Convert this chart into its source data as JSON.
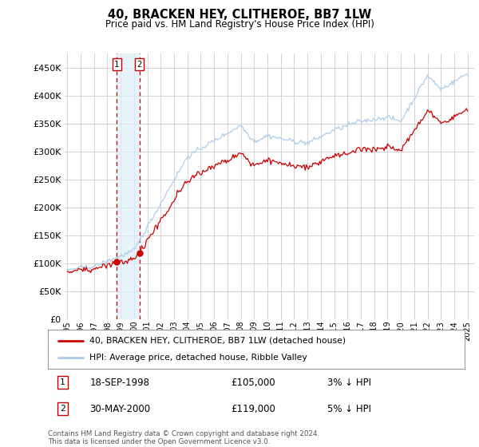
{
  "title": "40, BRACKEN HEY, CLITHEROE, BB7 1LW",
  "subtitle": "Price paid vs. HM Land Registry's House Price Index (HPI)",
  "legend_line1": "40, BRACKEN HEY, CLITHEROE, BB7 1LW (detached house)",
  "legend_line2": "HPI: Average price, detached house, Ribble Valley",
  "footnote": "Contains HM Land Registry data © Crown copyright and database right 2024.\nThis data is licensed under the Open Government Licence v3.0.",
  "transactions": [
    {
      "num": 1,
      "date": "18-SEP-1998",
      "price": 105000,
      "vs_hpi": "3% ↓ HPI",
      "x": 1998.71
    },
    {
      "num": 2,
      "date": "30-MAY-2000",
      "price": 119000,
      "vs_hpi": "5% ↓ HPI",
      "x": 2000.41
    }
  ],
  "hpi_color": "#a8c8e8",
  "price_color": "#cc0000",
  "marker_color": "#cc0000",
  "vline_color": "#cc0000",
  "shade_color": "#ddeef8",
  "background_color": "#ffffff",
  "grid_color": "#cccccc",
  "ylim": [
    0,
    475000
  ],
  "xlim_start": 1994.8,
  "xlim_end": 2025.5,
  "yticks": [
    0,
    50000,
    100000,
    150000,
    200000,
    250000,
    300000,
    350000,
    400000,
    450000
  ],
  "ytick_labels": [
    "£0",
    "£50K",
    "£100K",
    "£150K",
    "£200K",
    "£250K",
    "£300K",
    "£350K",
    "£400K",
    "£450K"
  ],
  "xtick_years": [
    1995,
    1996,
    1997,
    1998,
    1999,
    2000,
    2001,
    2002,
    2003,
    2004,
    2005,
    2006,
    2007,
    2008,
    2009,
    2010,
    2011,
    2012,
    2013,
    2014,
    2015,
    2016,
    2017,
    2018,
    2019,
    2020,
    2021,
    2022,
    2023,
    2024,
    2025
  ]
}
